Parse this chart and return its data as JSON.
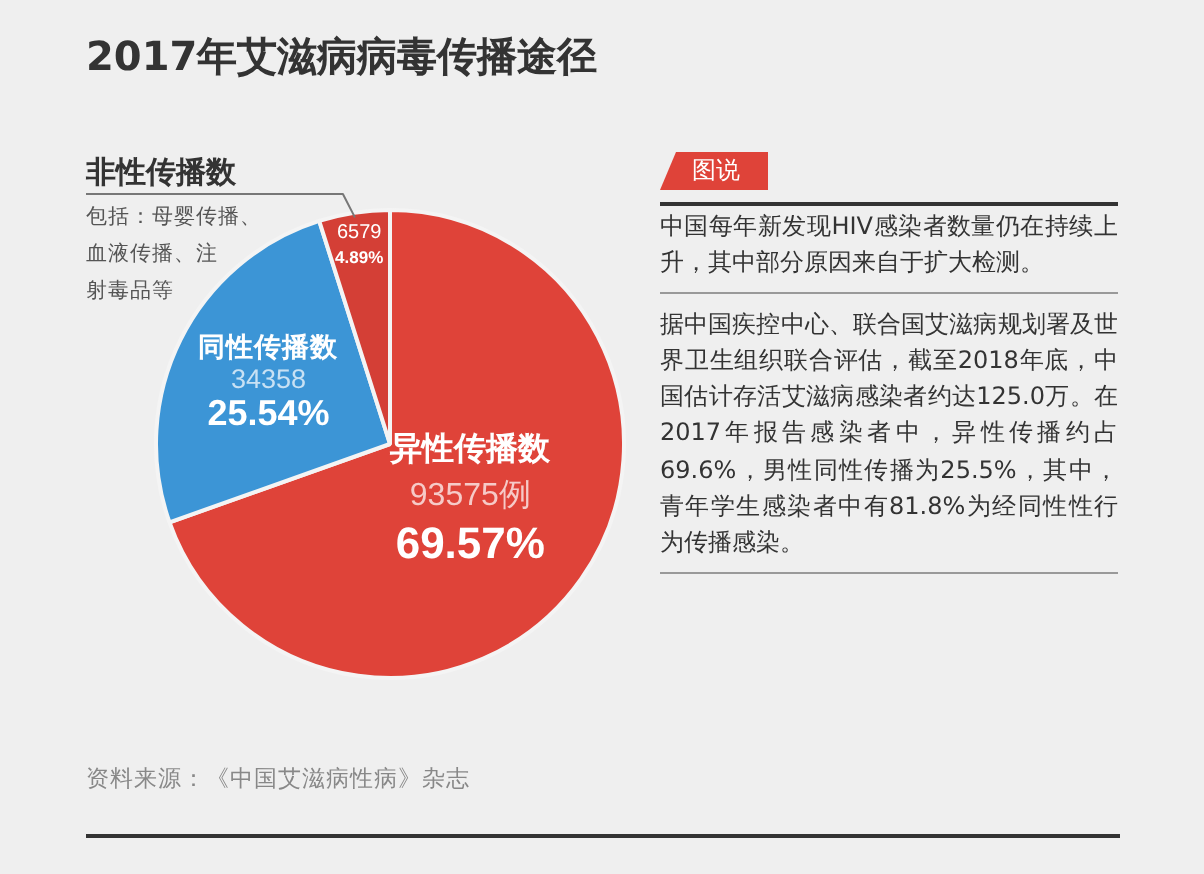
{
  "chart_data": {
    "type": "pie",
    "title": "2017年艾滋病病毒传播途径",
    "categories": [
      "异性传播数",
      "同性传播数",
      "非性传播数"
    ],
    "values": [
      93575,
      34358,
      6579
    ],
    "colors": [
      "#df4339",
      "#3c95d6",
      "#d43f36"
    ],
    "value_labels": [
      "93575例\n69.57%",
      "34358\n25.54%",
      "6579\n4.89%"
    ],
    "annotations": [
      "包括：母婴传播、血液传播、注射毒品等",
      "图说",
      "中国每年新发现HIV感染者数量仍在持续上升，其中部分原因来自于扩大检测。",
      "据中国疾控中心、联合国艾滋病规划署及世界卫生组织联合评估，截至2018年底，中国估计存活艾滋病感染者约达125.0万。在2017年报告感染者中，异性传播约占69.6%，男性同性传播为25.5%，其中，青年学生感染者中有81.8%为经同性性行为传播感染。",
      "资料来源：《中国艾滋病性病》杂志"
    ]
  }
}
